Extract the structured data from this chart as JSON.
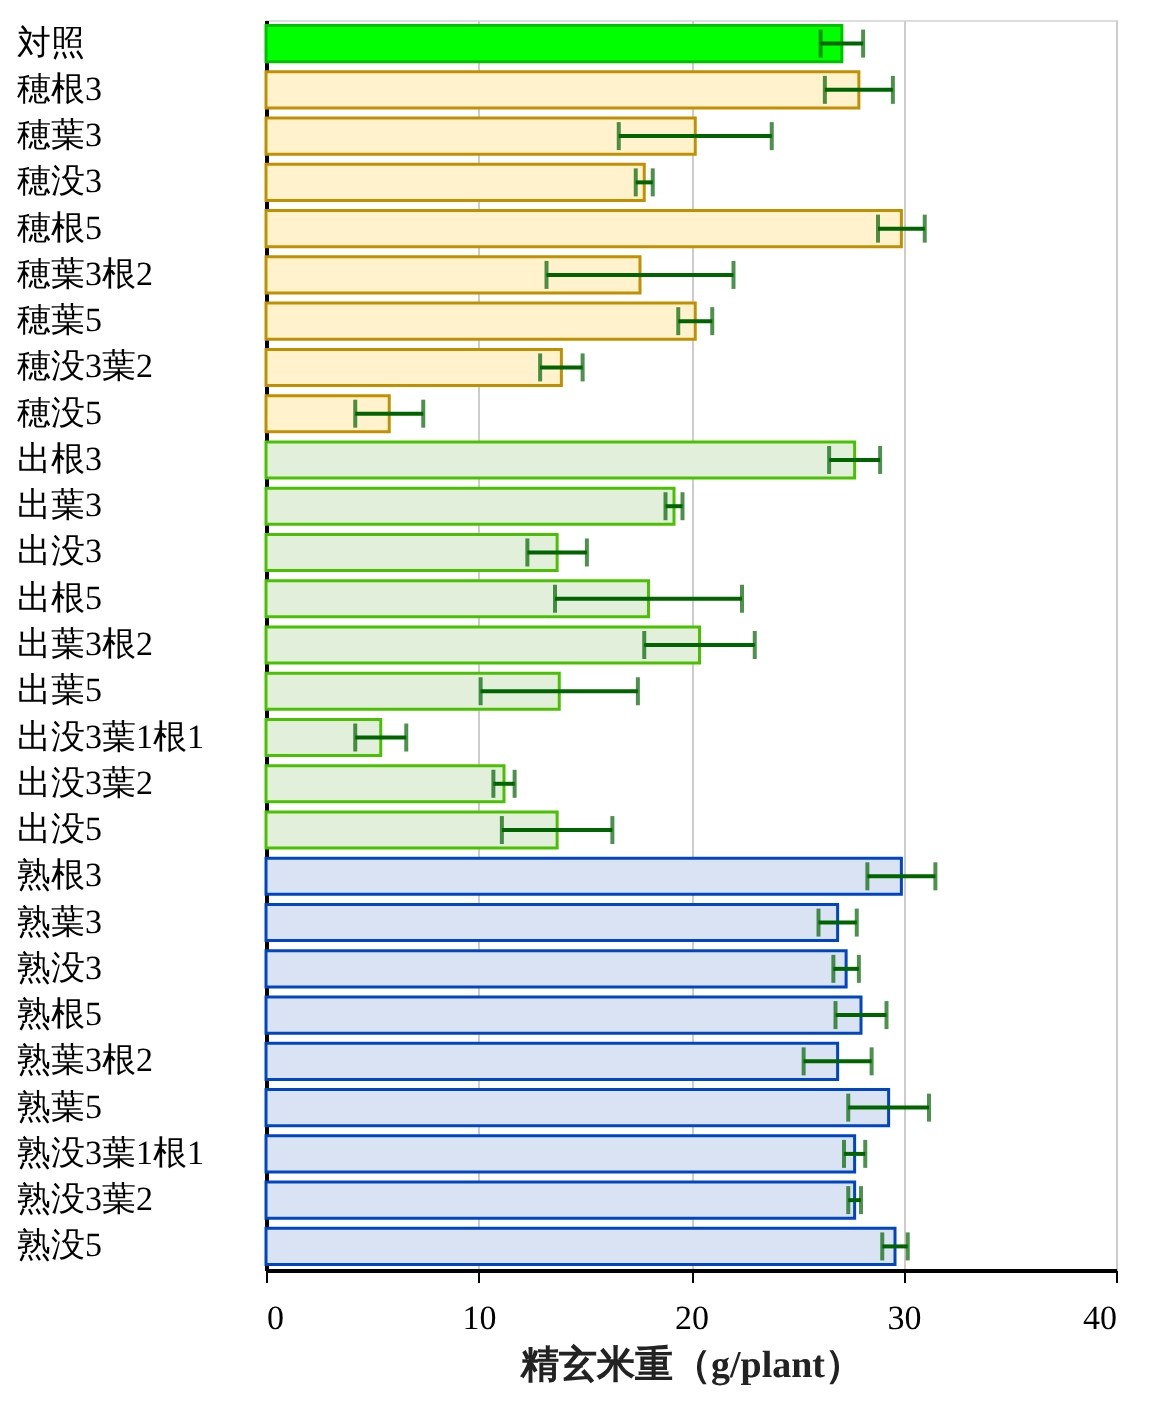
{
  "chart_data": {
    "type": "bar",
    "orientation": "horizontal",
    "xlabel": "精玄米重（g/plant）",
    "categories": [
      "対照",
      "穂根3",
      "穂葉3",
      "穂没3",
      "穂根5",
      "穂葉3根2",
      "穂葉5",
      "穂没3葉2",
      "穂没5",
      "出根3",
      "出葉3",
      "出没3",
      "出根5",
      "出葉3根2",
      "出葉5",
      "出没3葉1根1",
      "出没3葉2",
      "出没5",
      "熟根3",
      "熟葉3",
      "熟没3",
      "熟根5",
      "熟葉3根2",
      "熟葉5",
      "熟没3葉1根1",
      "熟没3葉2",
      "熟没5"
    ],
    "values": [
      27.1,
      27.9,
      20.2,
      17.8,
      29.9,
      17.6,
      20.2,
      13.9,
      5.8,
      27.7,
      19.2,
      13.7,
      18.0,
      20.4,
      13.8,
      5.4,
      11.2,
      13.7,
      29.9,
      26.9,
      27.3,
      28.0,
      26.9,
      29.3,
      27.7,
      27.7,
      29.6
    ],
    "errors": [
      1.0,
      1.6,
      3.6,
      0.4,
      1.1,
      4.4,
      0.8,
      1.0,
      1.6,
      1.2,
      0.4,
      1.4,
      4.4,
      2.6,
      3.7,
      1.2,
      0.5,
      2.6,
      1.6,
      0.9,
      0.6,
      1.2,
      1.6,
      1.9,
      0.5,
      0.3,
      0.6
    ],
    "colors": [
      "#00ff00",
      "#fff2cc",
      "#fff2cc",
      "#fff2cc",
      "#fff2cc",
      "#fff2cc",
      "#fff2cc",
      "#fff2cc",
      "#fff2cc",
      "#e2efda",
      "#e2efda",
      "#e2efda",
      "#e2efda",
      "#e2efda",
      "#e2efda",
      "#e2efda",
      "#e2efda",
      "#e2efda",
      "#dae3f3",
      "#dae3f3",
      "#dae3f3",
      "#dae3f3",
      "#dae3f3",
      "#dae3f3",
      "#dae3f3",
      "#dae3f3",
      "#dae3f3"
    ],
    "xlim": [
      0,
      40
    ],
    "xticks": [
      0,
      10,
      20,
      30,
      40
    ],
    "grid": "x"
  }
}
